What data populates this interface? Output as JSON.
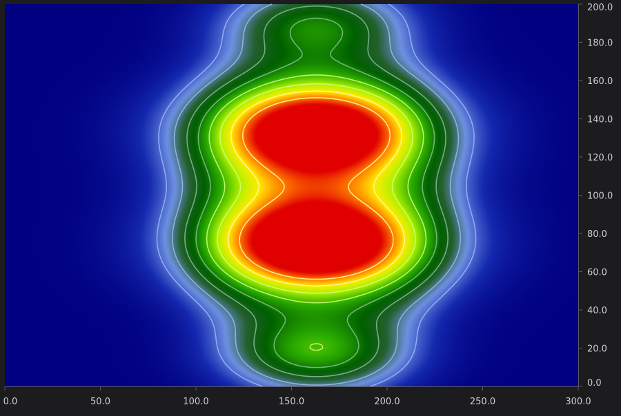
{
  "chart_data": {
    "type": "heatmap",
    "subtype": "heatmap-with-contours",
    "title": "",
    "xlabel": "",
    "ylabel": "",
    "xlim": [
      0,
      300
    ],
    "ylim": [
      0,
      200
    ],
    "x_ticks": [
      "0.0",
      "50.0",
      "100.0",
      "150.0",
      "200.0",
      "250.0",
      "300.0"
    ],
    "y_ticks": [
      "0.0",
      "20.0",
      "40.0",
      "60.0",
      "80.0",
      "100.0",
      "120.0",
      "140.0",
      "160.0",
      "180.0",
      "200.0"
    ],
    "y_axis_side": "right",
    "colormap": [
      "#000080",
      "#6a8ee0",
      "#00b800",
      "#ffff00",
      "#ff0000"
    ],
    "peaks": [
      {
        "x": 163,
        "y": 75,
        "intensity": 1.0
      },
      {
        "x": 163,
        "y": 133,
        "intensity": 0.97
      },
      {
        "x": 163,
        "y": 17,
        "intensity": 0.42
      },
      {
        "x": 163,
        "y": 190,
        "intensity": 0.38
      }
    ],
    "contour_levels": [
      0.2,
      0.3,
      0.4,
      0.5,
      0.6,
      0.7,
      0.8,
      0.9
    ]
  },
  "colors": {
    "background": "#1c1c1e",
    "plot_background": "#000080",
    "tick_text": "#cfcfcf",
    "axis_line": "#5a5a5a"
  }
}
